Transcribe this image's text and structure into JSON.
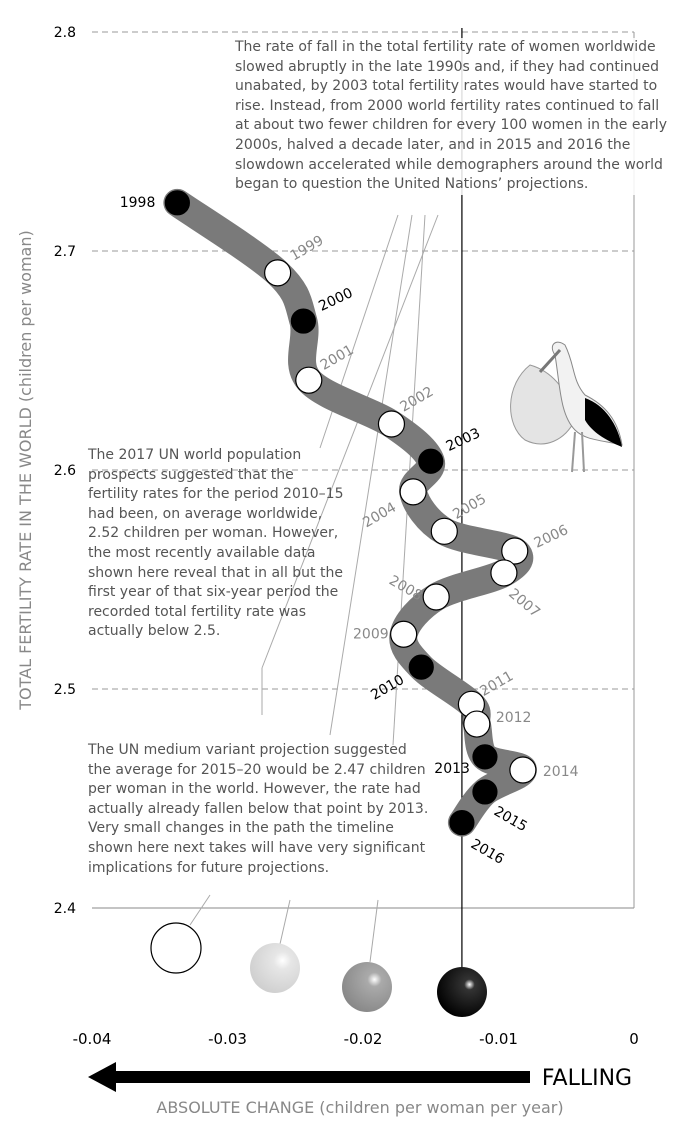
{
  "chart_data": {
    "type": "connected-scatter",
    "ylabel": "TOTAL FERTILITY RATE IN THE WORLD (children per woman)",
    "xlabel": "ABSOLUTE CHANGE (children per woman per year)",
    "direction_label": "FALLING",
    "point_labels": [
      "1998",
      "1999",
      "2000",
      "2001",
      "2002",
      "2003",
      "2004",
      "2005",
      "2006",
      "2007",
      "2008",
      "2009",
      "2010",
      "2011",
      "2012",
      "2013",
      "2014",
      "2015",
      "2016"
    ],
    "x": [
      -0.0337,
      -0.0263,
      -0.0244,
      -0.024,
      -0.0179,
      -0.015,
      -0.0163,
      -0.014,
      -0.0088,
      -0.0096,
      -0.0146,
      -0.017,
      -0.0157,
      -0.012,
      -0.0116,
      -0.011,
      -0.0082,
      -0.011,
      -0.0127
    ],
    "values": [
      2.722,
      2.69,
      2.668,
      2.641,
      2.621,
      2.604,
      2.59,
      2.572,
      2.563,
      2.553,
      2.542,
      2.525,
      2.51,
      2.493,
      2.484,
      2.469,
      2.463,
      2.453,
      2.439
    ],
    "point_colors": [
      "#000000",
      "#ffffff",
      "#000000",
      "#ffffff",
      "#ffffff",
      "#000000",
      "#ffffff",
      "#ffffff",
      "#ffffff",
      "#ffffff",
      "#ffffff",
      "#ffffff",
      "#000000",
      "#ffffff",
      "#ffffff",
      "#000000",
      "#ffffff",
      "#000000",
      "#000000"
    ],
    "path_color": "#7a7a7a",
    "xlim": [
      -0.04,
      0
    ],
    "ylim": [
      2.4,
      2.8
    ],
    "xticks": [
      -0.04,
      -0.03,
      -0.02,
      -0.01,
      0
    ],
    "yticks": [
      2.4,
      2.5,
      2.6,
      2.7,
      2.8
    ],
    "grid": true,
    "annotations": [
      "The rate of fall in the total fertility rate of women worldwide slowed abruptly in the late 1990s and, if they had continued unabated, by 2003 total fertility rates would have started to rise. Instead, from 2000 world fertility rates continued to fall at about two fewer children for every 100 women in the early 2000s, halved a decade later, and in 2015 and 2016 the slowdown accelerated while demographers around the world began to question the United Nations’ projections.",
      "The 2017 UN world population prospects suggested that the fertility rates for the period 2010–15 had been, on average worldwide, 2.52 children per woman. However, the most recently available data shown here reveal that in all but the first year of that six-year period the recorded total fertility rate was actually below 2.5.",
      "The UN medium variant projection suggested the average for 2015–20 would be 2.47 children per woman in the world. However, the rate had actually already fallen below that point by 2013. Very small changes in the path the timeline shown here next takes will have very significant implications for future projections."
    ]
  }
}
